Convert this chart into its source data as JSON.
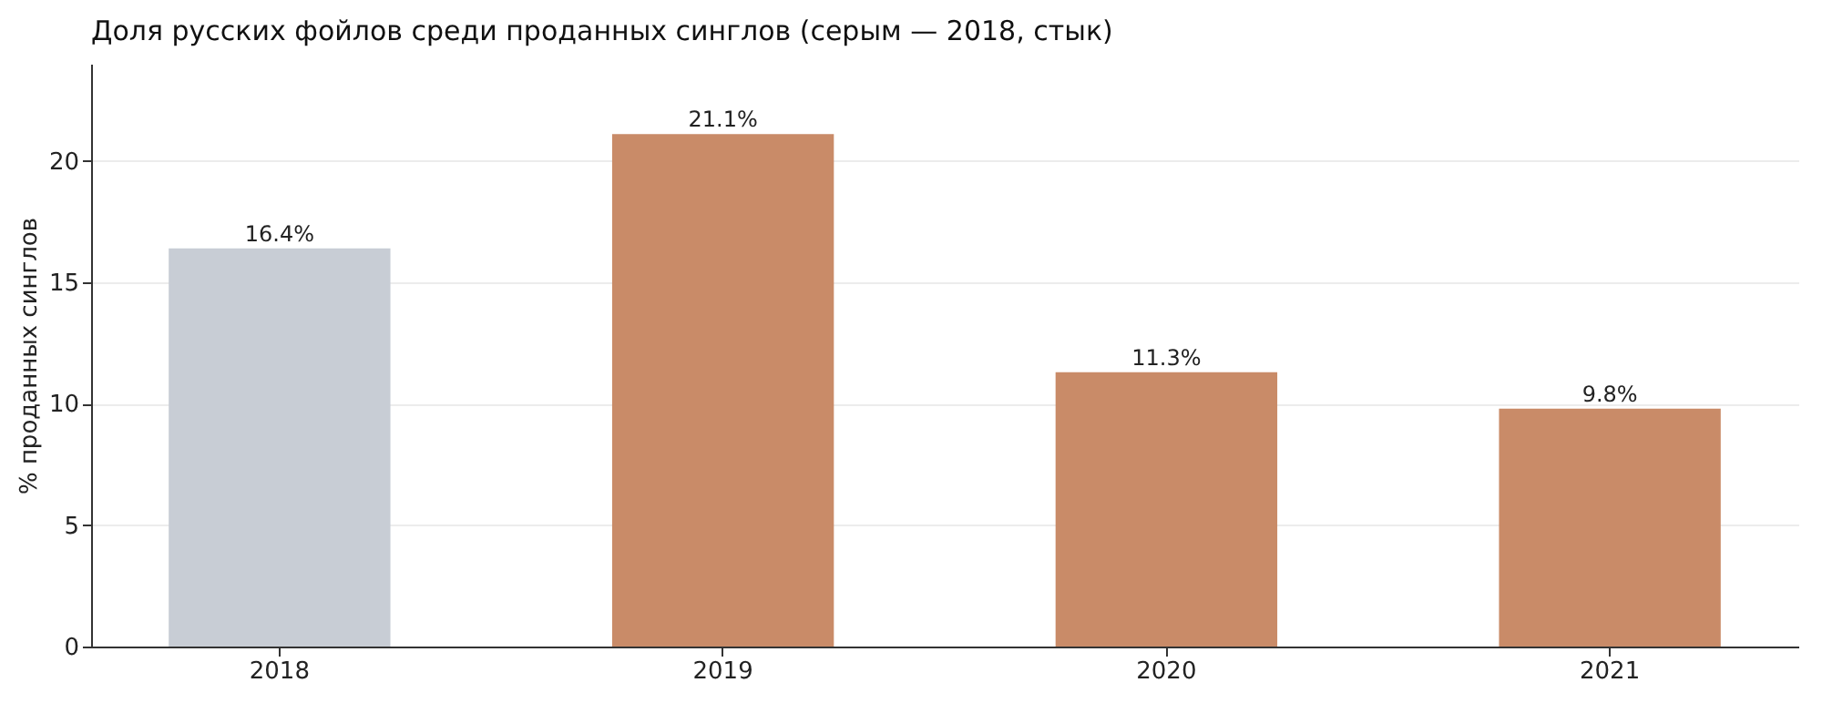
{
  "chart_data": {
    "type": "bar",
    "title": "Доля русских фойлов среди проданных синглов (серым — 2018, стык)",
    "ylabel": "% проданных синглов",
    "categories": [
      "2018",
      "2019",
      "2020",
      "2021"
    ],
    "values": [
      16.4,
      21.1,
      11.3,
      9.8
    ],
    "colors": [
      "#c8cdd5",
      "#c98b68",
      "#c98b68",
      "#c98b68"
    ],
    "value_labels": [
      "16.4%",
      "21.1%",
      "11.3%",
      "9.8%"
    ],
    "ylim": [
      0,
      24
    ],
    "yticks": [
      0,
      5,
      10,
      15,
      20
    ],
    "grid": "y"
  }
}
